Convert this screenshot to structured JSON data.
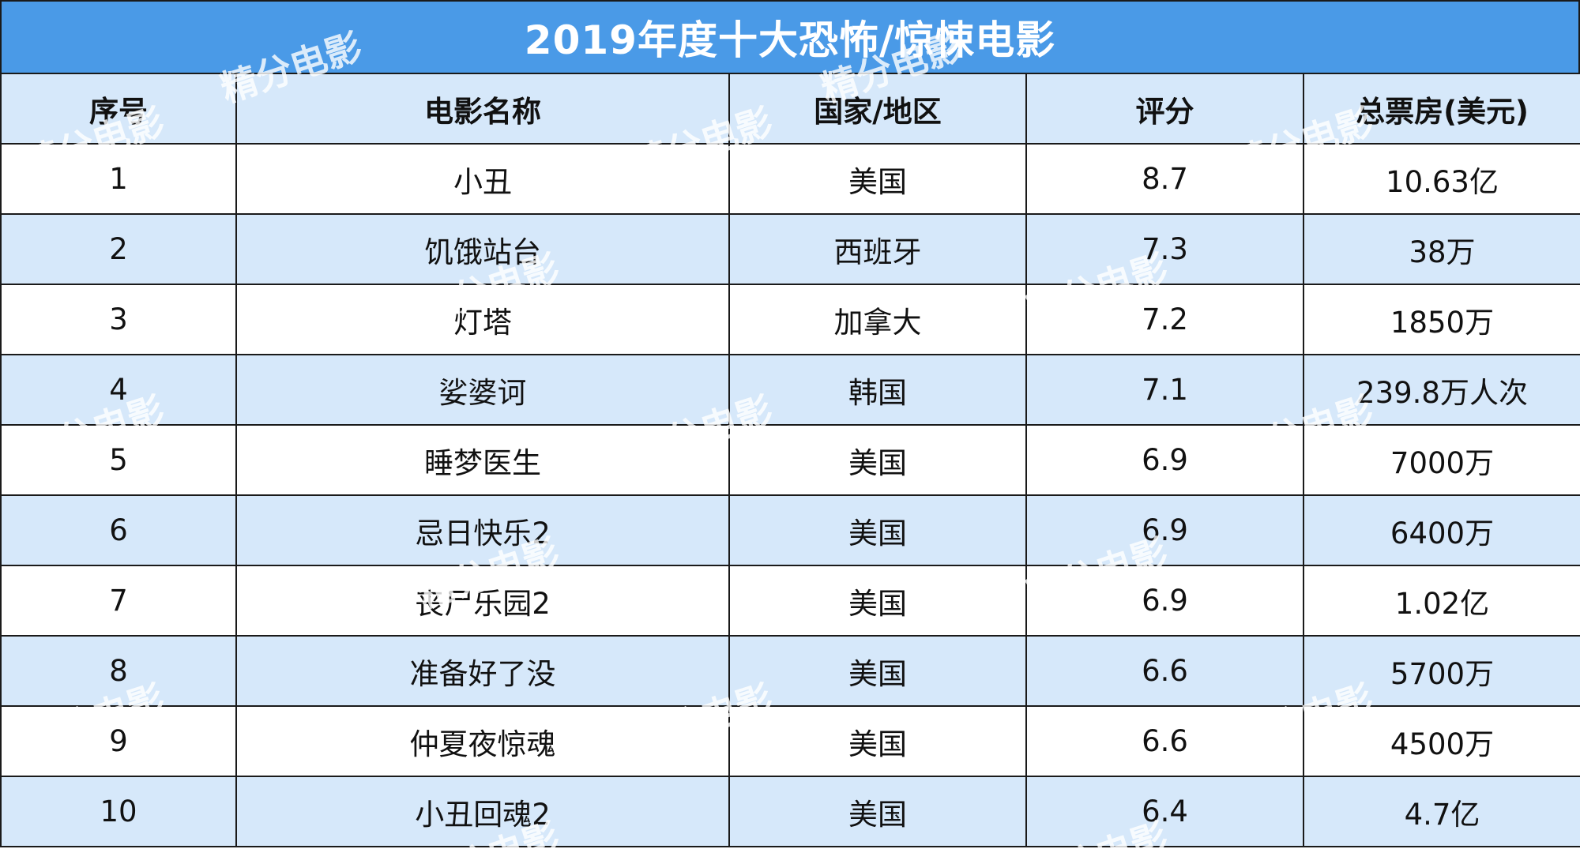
{
  "title": "2019年度十大恐怖/惊悚电影",
  "columns": [
    "序号",
    "电影名称",
    "国家/地区",
    "评分",
    "总票房(美元)"
  ],
  "rows": [
    {
      "no": "1",
      "name": "小丑",
      "country": "美国",
      "score": "8.7",
      "box": "10.63亿"
    },
    {
      "no": "2",
      "name": "饥饿站台",
      "country": "西班牙",
      "score": "7.3",
      "box": "38万"
    },
    {
      "no": "3",
      "name": "灯塔",
      "country": "加拿大",
      "score": "7.2",
      "box": "1850万"
    },
    {
      "no": "4",
      "name": "娑婆诃",
      "country": "韩国",
      "score": "7.1",
      "box": "239.8万人次"
    },
    {
      "no": "5",
      "name": "睡梦医生",
      "country": "美国",
      "score": "6.9",
      "box": "7000万"
    },
    {
      "no": "6",
      "name": "忌日快乐2",
      "country": "美国",
      "score": "6.9",
      "box": "6400万"
    },
    {
      "no": "7",
      "name": "丧尸乐园2",
      "country": "美国",
      "score": "6.9",
      "box": "1.02亿"
    },
    {
      "no": "8",
      "name": "准备好了没",
      "country": "美国",
      "score": "6.6",
      "box": "5700万"
    },
    {
      "no": "9",
      "name": "仲夏夜惊魂",
      "country": "美国",
      "score": "6.6",
      "box": "4500万"
    },
    {
      "no": "10",
      "name": "小丑回魂2",
      "country": "美国",
      "score": "6.4",
      "box": "4.7亿"
    }
  ],
  "watermark": "精分电影"
}
